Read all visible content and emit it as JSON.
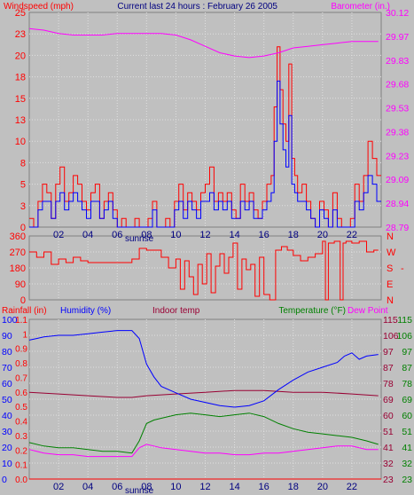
{
  "header": {
    "title": "Current last 24 hours : February 26 2005",
    "left_label": "Windspeed (mph)",
    "right_label": "Barometer (in.)"
  },
  "colors": {
    "background": "#c0c0c0",
    "windspeed": "#ff0000",
    "wind_avg": "#0000ff",
    "barometer": "#ff00ff",
    "direction": "#ff0000",
    "humidity": "#0000ff",
    "indoor_temp": "#990033",
    "temperature": "#008000",
    "dew_point": "#ff00ff",
    "rainfall": "#ff0000",
    "title": "#000080"
  },
  "chart_data": [
    {
      "type": "line",
      "panel": "wind",
      "title": "Current last 24 hours : February 26 2005",
      "xticks": [
        "02",
        "04",
        "06",
        "08",
        "10",
        "12",
        "14",
        "16",
        "18",
        "20",
        "22"
      ],
      "x_annotation": "sunrise",
      "sunrise_hour": 7.5,
      "xlim": [
        0,
        24
      ],
      "y_left": {
        "label": "Windspeed (mph)",
        "ylim": [
          0,
          25
        ],
        "ticks": [
          "0",
          "3",
          "5",
          "8",
          "10",
          "13",
          "15",
          "18",
          "20",
          "23",
          "25"
        ]
      },
      "y_right": {
        "label": "Barometer (in.)",
        "ylim": [
          28.79,
          30.12
        ],
        "ticks": [
          "28.79",
          "28.94",
          "29.09",
          "29.23",
          "29.38",
          "29.53",
          "29.68",
          "29.83",
          "29.97",
          "30.12"
        ]
      },
      "series": [
        {
          "name": "Windspeed (mph)",
          "axis": "left",
          "step": true,
          "x": [
            0,
            0.3,
            0.6,
            0.9,
            1.2,
            1.5,
            1.8,
            2.1,
            2.4,
            2.7,
            3.0,
            3.3,
            3.6,
            3.9,
            4.2,
            4.5,
            4.8,
            5.1,
            5.4,
            5.7,
            6.0,
            6.3,
            6.6,
            6.9,
            7.2,
            7.5,
            7.8,
            8.1,
            8.4,
            8.7,
            9.0,
            9.3,
            9.6,
            9.9,
            10.2,
            10.5,
            10.8,
            11.1,
            11.4,
            11.7,
            12.0,
            12.3,
            12.6,
            12.9,
            13.2,
            13.5,
            13.8,
            14.1,
            14.4,
            14.7,
            15.0,
            15.3,
            15.6,
            15.9,
            16.2,
            16.5,
            16.7,
            16.9,
            17.1,
            17.3,
            17.5,
            17.7,
            17.9,
            18.1,
            18.3,
            18.6,
            18.9,
            19.2,
            19.5,
            19.8,
            20.1,
            20.4,
            20.7,
            21.0,
            21.3,
            21.6,
            21.9,
            22.2,
            22.5,
            22.8,
            23.1,
            23.4,
            23.7
          ],
          "values": [
            1,
            0,
            3,
            5,
            4,
            1,
            5,
            7,
            3,
            4,
            6,
            5,
            3,
            2,
            4,
            5,
            1,
            3,
            4,
            2,
            0,
            1,
            0,
            0,
            1,
            0,
            0,
            1,
            3,
            0,
            0,
            1,
            0,
            3,
            5,
            2,
            4,
            3,
            2,
            4,
            5,
            7,
            3,
            4,
            3,
            4,
            2,
            1,
            5,
            3,
            4,
            2,
            1,
            3,
            5,
            6,
            14,
            21,
            16,
            12,
            10,
            19,
            8,
            6,
            4,
            5,
            3,
            1,
            0,
            3,
            2,
            0,
            4,
            1,
            0,
            0,
            1,
            5,
            3,
            6,
            10,
            8,
            6
          ]
        },
        {
          "name": "Wind avg (mph)",
          "axis": "left",
          "step": true,
          "x": [
            0,
            0.3,
            0.6,
            0.9,
            1.2,
            1.5,
            1.8,
            2.1,
            2.4,
            2.7,
            3.0,
            3.3,
            3.6,
            3.9,
            4.2,
            4.5,
            4.8,
            5.1,
            5.4,
            5.7,
            6.0,
            6.3,
            6.6,
            6.9,
            7.2,
            7.5,
            7.8,
            8.1,
            8.4,
            8.7,
            9.0,
            9.3,
            9.6,
            9.9,
            10.2,
            10.5,
            10.8,
            11.1,
            11.4,
            11.7,
            12.0,
            12.3,
            12.6,
            12.9,
            13.2,
            13.5,
            13.8,
            14.1,
            14.4,
            14.7,
            15.0,
            15.3,
            15.6,
            15.9,
            16.2,
            16.5,
            16.7,
            16.9,
            17.1,
            17.3,
            17.5,
            17.7,
            17.9,
            18.1,
            18.3,
            18.6,
            18.9,
            19.2,
            19.5,
            19.8,
            20.1,
            20.4,
            20.7,
            21.0,
            21.3,
            21.6,
            21.9,
            22.2,
            22.5,
            22.8,
            23.1,
            23.4,
            23.7
          ],
          "values": [
            0,
            0,
            2,
            3,
            3,
            1,
            3,
            4,
            2,
            3,
            4,
            3,
            2,
            1,
            3,
            3,
            1,
            2,
            3,
            1,
            0,
            0,
            0,
            0,
            0,
            0,
            0,
            0,
            2,
            0,
            0,
            0,
            0,
            2,
            3,
            1,
            3,
            2,
            1,
            3,
            3,
            4,
            2,
            3,
            2,
            3,
            1,
            1,
            3,
            2,
            3,
            1,
            1,
            2,
            3,
            4,
            10,
            17,
            12,
            9,
            7,
            13,
            5,
            4,
            3,
            3,
            2,
            1,
            0,
            2,
            1,
            0,
            2,
            0,
            0,
            0,
            0,
            3,
            2,
            4,
            6,
            5,
            3
          ]
        },
        {
          "name": "Barometer (in.)",
          "axis": "right",
          "x": [
            0,
            1,
            2,
            3,
            4,
            5,
            6,
            7,
            8,
            9,
            10,
            11,
            12,
            13,
            14,
            15,
            16,
            17,
            18,
            19,
            20,
            21,
            22,
            23,
            23.8
          ],
          "values": [
            30.02,
            30.01,
            29.99,
            29.98,
            29.98,
            29.98,
            29.99,
            29.99,
            29.99,
            29.99,
            29.98,
            29.95,
            29.91,
            29.87,
            29.85,
            29.84,
            29.85,
            29.87,
            29.9,
            29.91,
            29.92,
            29.93,
            29.94,
            29.94,
            29.94
          ]
        }
      ]
    },
    {
      "type": "line",
      "panel": "direction",
      "xlim": [
        0,
        24
      ],
      "y_left": {
        "ylim": [
          0,
          360
        ],
        "ticks": [
          "0",
          "90",
          "180",
          "270",
          "360"
        ]
      },
      "y_right": {
        "ticks": [
          "N",
          "E",
          "S",
          "W",
          "N"
        ]
      },
      "series": [
        {
          "name": "Wind direction",
          "step": true,
          "x": [
            0,
            0.5,
            1.0,
            1.5,
            2.0,
            2.5,
            3.0,
            3.5,
            4.0,
            4.5,
            5.0,
            5.5,
            6.0,
            6.5,
            7.0,
            7.5,
            8.0,
            8.5,
            9.0,
            9.5,
            10.0,
            10.3,
            10.6,
            10.9,
            11.2,
            11.5,
            11.8,
            12.1,
            12.4,
            12.7,
            13.0,
            13.3,
            13.6,
            13.9,
            14.2,
            14.5,
            14.8,
            15.1,
            15.4,
            15.7,
            16.0,
            16.4,
            16.8,
            17.2,
            17.6,
            18.0,
            18.5,
            19.0,
            19.5,
            20.0,
            20.2,
            20.4,
            20.8,
            21.2,
            21.4,
            21.6,
            22.0,
            22.5,
            23.0,
            23.5
          ],
          "values": [
            270,
            240,
            270,
            200,
            230,
            210,
            240,
            220,
            210,
            210,
            210,
            210,
            210,
            210,
            230,
            290,
            280,
            280,
            240,
            180,
            230,
            60,
            220,
            130,
            30,
            200,
            90,
            260,
            40,
            190,
            260,
            150,
            240,
            320,
            60,
            230,
            170,
            200,
            20,
            240,
            30,
            0,
            280,
            300,
            280,
            250,
            220,
            240,
            260,
            330,
            0,
            320,
            330,
            0,
            320,
            330,
            320,
            330,
            270,
            280
          ]
        }
      ]
    },
    {
      "type": "line",
      "panel": "temperature",
      "xticks": [
        "02",
        "04",
        "06",
        "08",
        "10",
        "12",
        "14",
        "16",
        "18",
        "20",
        "22"
      ],
      "x_annotation": "sunrise",
      "sunrise_hour": 7.5,
      "xlim": [
        0,
        24
      ],
      "labels": {
        "rainfall": "Rainfall (in)",
        "humidity": "Humidity (%)",
        "indoor": "Indoor temp",
        "temperature": "Temperature (°F)",
        "dewpoint": "Dew Point"
      },
      "y_humidity": {
        "ylim": [
          0,
          100
        ],
        "ticks": [
          "0",
          "10",
          "20",
          "30",
          "40",
          "50",
          "60",
          "70",
          "80",
          "90",
          "100"
        ]
      },
      "y_rainfall": {
        "ylim": [
          0,
          1.1
        ],
        "ticks": [
          "0.0",
          "0.1",
          "0.2",
          "0.3",
          "0.4",
          "0.5",
          "0.6",
          "0.7",
          "0.8",
          "0.9",
          "1",
          "1.1"
        ]
      },
      "y_right_inner": {
        "ylim": [
          23,
          115
        ],
        "ticks": [
          "23",
          "32",
          "41",
          "51",
          "60",
          "69",
          "78",
          "87",
          "97",
          "106",
          "115"
        ]
      },
      "y_right_outer": {
        "ticks": [
          "23",
          "32",
          "41",
          "51",
          "60",
          "69",
          "78",
          "87",
          "97",
          "106",
          "115"
        ]
      },
      "series": [
        {
          "name": "Humidity (%)",
          "axis": "humidity",
          "x": [
            0,
            0.5,
            1,
            2,
            3,
            4,
            5,
            6,
            7,
            7.5,
            8,
            8.5,
            9,
            10,
            11,
            12,
            13,
            14,
            15,
            16,
            17,
            18,
            19,
            20,
            21,
            21.5,
            22,
            22.5,
            23,
            23.8
          ],
          "values": [
            87,
            88,
            89,
            90,
            90,
            91,
            92,
            93,
            93,
            88,
            72,
            64,
            58,
            54,
            50,
            48,
            46,
            45,
            46,
            49,
            56,
            62,
            67,
            70,
            73,
            77,
            79,
            75,
            77,
            78
          ]
        },
        {
          "name": "Indoor temp",
          "axis": "right",
          "x": [
            0,
            2,
            4,
            6,
            7,
            8,
            10,
            12,
            14,
            16,
            18,
            20,
            22,
            23.8
          ],
          "values": [
            73,
            72,
            71,
            70,
            70,
            71,
            72,
            73,
            74,
            74,
            73,
            73,
            72,
            71
          ]
        },
        {
          "name": "Temperature (°F)",
          "axis": "right",
          "x": [
            0,
            1,
            2,
            3,
            4,
            5,
            6,
            7,
            7.5,
            8,
            8.5,
            9,
            10,
            11,
            12,
            13,
            14,
            15,
            16,
            17,
            18,
            19,
            20,
            21,
            22,
            23,
            23.8
          ],
          "values": [
            44,
            42,
            41,
            41,
            40,
            39,
            39,
            38,
            45,
            55,
            57,
            58,
            60,
            61,
            60,
            59,
            60,
            61,
            59,
            55,
            52,
            50,
            49,
            48,
            47,
            45,
            43
          ]
        },
        {
          "name": "Dew Point",
          "axis": "right",
          "x": [
            0,
            1,
            2,
            3,
            4,
            5,
            6,
            7,
            7.5,
            8,
            8.5,
            9,
            10,
            11,
            12,
            13,
            14,
            15,
            16,
            17,
            18,
            19,
            20,
            21,
            22,
            23,
            23.8
          ],
          "values": [
            40,
            38,
            37,
            37,
            36,
            36,
            36,
            36,
            41,
            43,
            42,
            41,
            40,
            39,
            38,
            38,
            37,
            37,
            38,
            38,
            39,
            40,
            41,
            42,
            42,
            40,
            40
          ]
        },
        {
          "name": "Rainfall (in)",
          "axis": "rainfall",
          "x": [
            0,
            24
          ],
          "values": [
            0,
            0
          ]
        }
      ]
    }
  ]
}
